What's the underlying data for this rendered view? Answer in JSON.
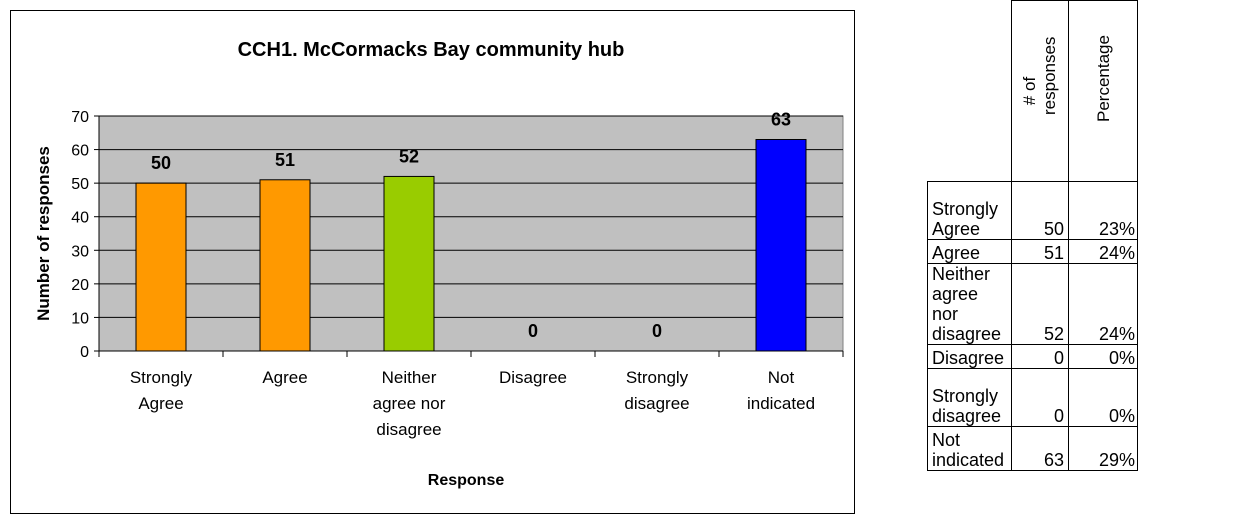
{
  "chart_data": {
    "type": "bar",
    "title": "CCH1. McCormacks Bay community hub",
    "xlabel": "Response",
    "ylabel": "Number of responses",
    "ylim": [
      0,
      70
    ],
    "yticks": [
      0,
      10,
      20,
      30,
      40,
      50,
      60,
      70
    ],
    "categories": [
      [
        "Strongly",
        "Agree"
      ],
      [
        "Agree"
      ],
      [
        "Neither",
        "agree nor",
        "disagree"
      ],
      [
        "Disagree"
      ],
      [
        "Strongly",
        "disagree"
      ],
      [
        "Not",
        "indicated"
      ]
    ],
    "values": [
      50,
      51,
      52,
      0,
      0,
      63
    ],
    "bar_colors": [
      "#ff9900",
      "#ff9900",
      "#99cc00",
      "#ff9900",
      "#ff9900",
      "#0000ff"
    ],
    "plot_background": "#c0c0c0",
    "grid": true,
    "legend": "none"
  },
  "table": {
    "headers": [
      "# of responses",
      "Percentage"
    ],
    "rows": [
      {
        "label": [
          "Strongly",
          "Agree"
        ],
        "count": "50",
        "percent": "23%"
      },
      {
        "label": [
          "Agree"
        ],
        "count": "51",
        "percent": "24%"
      },
      {
        "label": [
          "Neither",
          "agree nor",
          "disagree"
        ],
        "count": "52",
        "percent": "24%"
      },
      {
        "label": [
          "Disagree"
        ],
        "count": "0",
        "percent": "0%"
      },
      {
        "label": [
          "Strongly",
          "disagree"
        ],
        "count": "0",
        "percent": "0%"
      },
      {
        "label": [
          "Not",
          "indicated"
        ],
        "count": "63",
        "percent": "29%"
      }
    ]
  }
}
